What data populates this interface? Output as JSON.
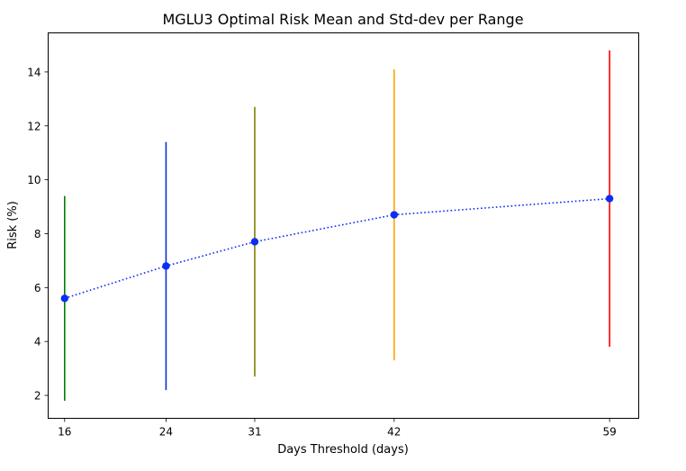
{
  "chart_data": {
    "type": "scatter",
    "title": "MGLU3 Optimal Risk Mean and Std-dev per Range",
    "xlabel": "Days Threshold (days)",
    "ylabel": "Risk (%)",
    "x": [
      16,
      24,
      31,
      42,
      59
    ],
    "x_tick_labels": [
      "16",
      "24",
      "31",
      "42",
      "59"
    ],
    "xlim": [
      14.7,
      61.3
    ],
    "ylim": [
      1.15,
      15.45
    ],
    "y_ticks": [
      2,
      4,
      6,
      8,
      10,
      12,
      14
    ],
    "y_tick_labels": [
      "2",
      "4",
      "6",
      "8",
      "10",
      "12",
      "14"
    ],
    "grid": false,
    "series": [
      {
        "style": "dotted line with circle markers",
        "color": "#0a2ef5",
        "values": [
          5.6,
          6.8,
          7.7,
          8.7,
          9.3
        ]
      }
    ],
    "error_bars": [
      {
        "x": 16,
        "low": 1.8,
        "high": 9.4,
        "color": "#008000"
      },
      {
        "x": 24,
        "low": 2.2,
        "high": 11.4,
        "color": "#0033dd"
      },
      {
        "x": 31,
        "low": 2.7,
        "high": 12.7,
        "color": "#808000"
      },
      {
        "x": 42,
        "low": 3.3,
        "high": 14.1,
        "color": "#ffa500"
      },
      {
        "x": 59,
        "low": 3.8,
        "high": 14.8,
        "color": "#ff0000"
      }
    ]
  }
}
